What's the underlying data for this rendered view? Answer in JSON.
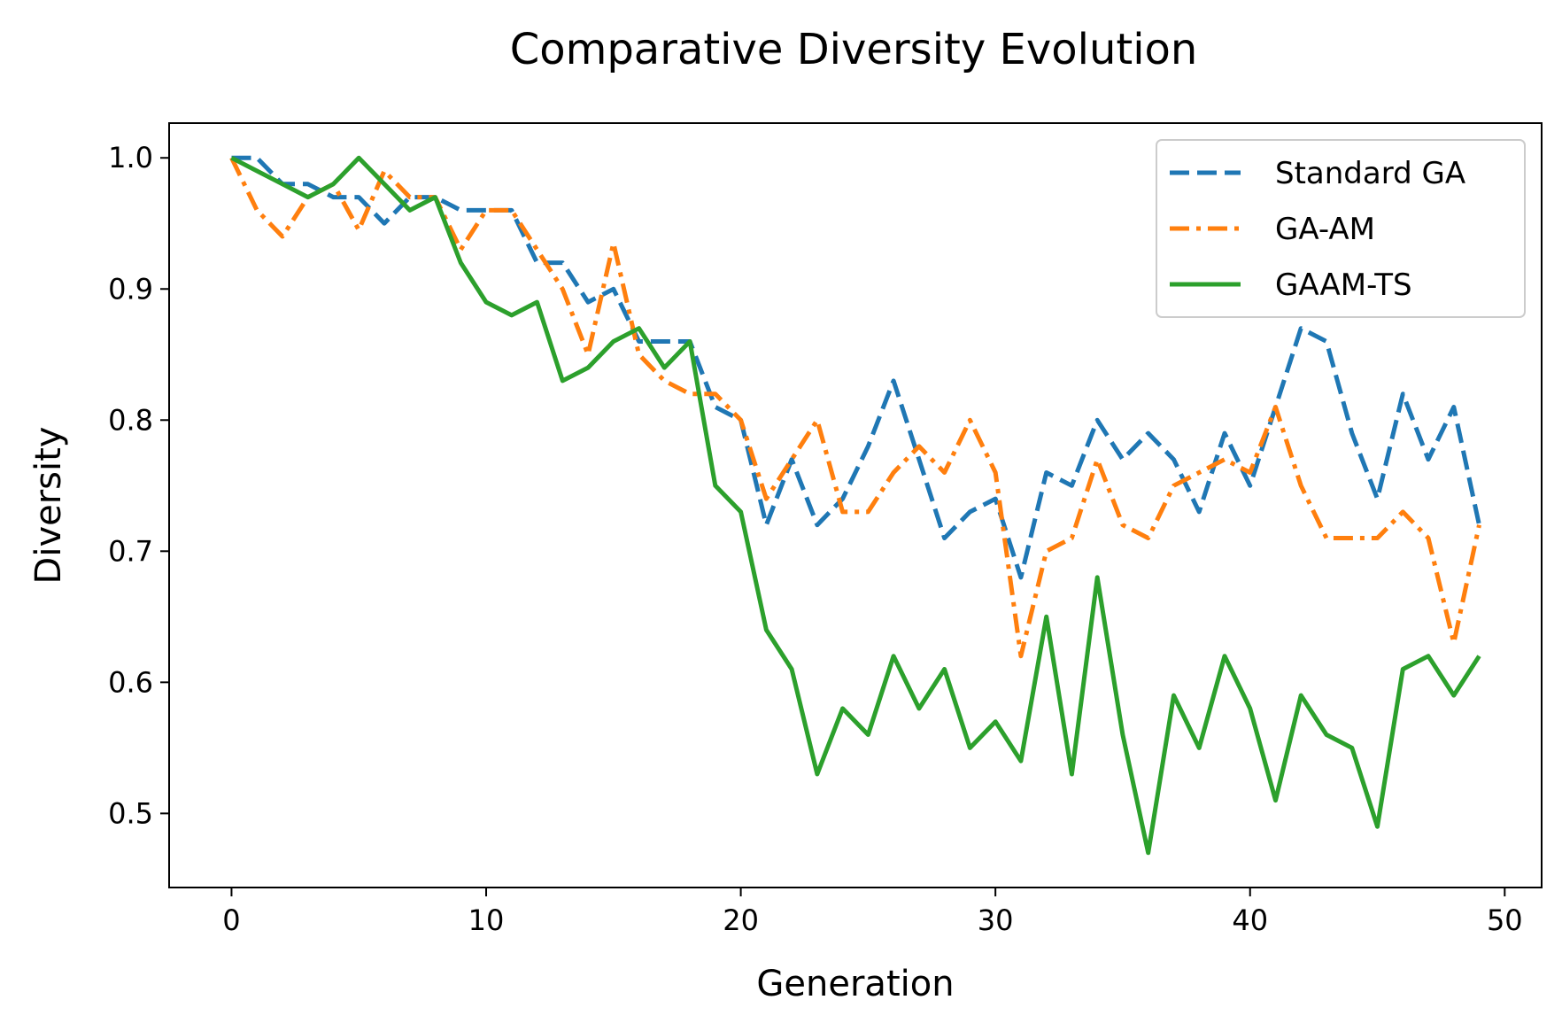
{
  "chart_data": {
    "type": "line",
    "title": "Comparative Diversity Evolution",
    "xlabel": "Generation",
    "ylabel": "Diversity",
    "xlim": [
      -2.45,
      51.45
    ],
    "ylim": [
      0.4435,
      1.0265
    ],
    "x_ticks": [
      0,
      10,
      20,
      30,
      40,
      50
    ],
    "y_ticks": [
      0.5,
      0.6,
      0.7,
      0.8,
      0.9,
      1.0
    ],
    "x_tick_labels": [
      "0",
      "10",
      "20",
      "30",
      "40",
      "50"
    ],
    "y_tick_labels": [
      "0.5",
      "0.6",
      "0.7",
      "0.8",
      "0.9",
      "1.0"
    ],
    "grid": false,
    "legend_position": "top-right",
    "x": [
      0,
      1,
      2,
      3,
      4,
      5,
      6,
      7,
      8,
      9,
      10,
      11,
      12,
      13,
      14,
      15,
      16,
      17,
      18,
      19,
      20,
      21,
      22,
      23,
      24,
      25,
      26,
      27,
      28,
      29,
      30,
      31,
      32,
      33,
      34,
      35,
      36,
      37,
      38,
      39,
      40,
      41,
      42,
      43,
      44,
      45,
      46,
      47,
      48,
      49
    ],
    "series": [
      {
        "name": "Standard GA",
        "color": "#1f77b4",
        "style": "dashed",
        "values": [
          1.0,
          1.0,
          0.98,
          0.98,
          0.97,
          0.97,
          0.95,
          0.97,
          0.97,
          0.96,
          0.96,
          0.96,
          0.92,
          0.92,
          0.89,
          0.9,
          0.86,
          0.86,
          0.86,
          0.81,
          0.8,
          0.72,
          0.77,
          0.72,
          0.74,
          0.78,
          0.83,
          0.77,
          0.71,
          0.73,
          0.74,
          0.68,
          0.76,
          0.75,
          0.8,
          0.77,
          0.79,
          0.77,
          0.73,
          0.79,
          0.75,
          0.81,
          0.87,
          0.86,
          0.79,
          0.74,
          0.82,
          0.77,
          0.81,
          0.72
        ]
      },
      {
        "name": "GA-AM",
        "color": "#ff7f0e",
        "style": "dashdot",
        "values": [
          1.0,
          0.96,
          0.94,
          0.97,
          0.98,
          0.945,
          0.99,
          0.97,
          0.97,
          0.93,
          0.96,
          0.96,
          0.93,
          0.9,
          0.85,
          0.935,
          0.85,
          0.83,
          0.82,
          0.82,
          0.8,
          0.74,
          0.77,
          0.8,
          0.73,
          0.73,
          0.76,
          0.78,
          0.76,
          0.8,
          0.76,
          0.62,
          0.7,
          0.71,
          0.77,
          0.72,
          0.71,
          0.75,
          0.76,
          0.77,
          0.76,
          0.81,
          0.75,
          0.71,
          0.71,
          0.71,
          0.73,
          0.71,
          0.63,
          0.72
        ]
      },
      {
        "name": "GAAM-TS",
        "color": "#2ca02c",
        "style": "solid",
        "values": [
          1.0,
          0.99,
          0.98,
          0.97,
          0.98,
          1.0,
          0.98,
          0.96,
          0.97,
          0.92,
          0.89,
          0.88,
          0.89,
          0.83,
          0.84,
          0.86,
          0.87,
          0.84,
          0.86,
          0.75,
          0.73,
          0.64,
          0.61,
          0.53,
          0.58,
          0.56,
          0.62,
          0.58,
          0.61,
          0.55,
          0.57,
          0.54,
          0.65,
          0.53,
          0.68,
          0.56,
          0.47,
          0.59,
          0.55,
          0.62,
          0.58,
          0.51,
          0.59,
          0.56,
          0.55,
          0.49,
          0.61,
          0.62,
          0.59,
          0.62
        ]
      }
    ]
  }
}
